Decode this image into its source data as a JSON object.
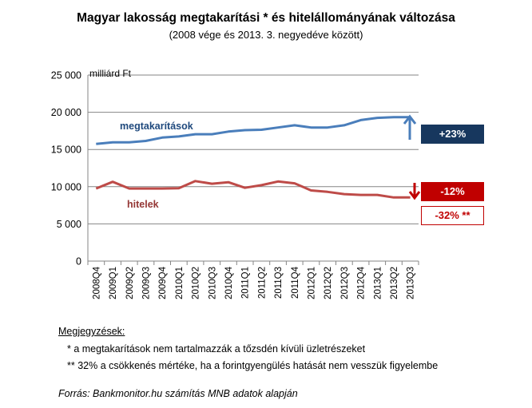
{
  "chart_data": {
    "type": "line",
    "title": "Magyar lakosság megtakarítási * és hitelállományának változása",
    "subtitle": "(2008 vége és 2013. 3. negyedéve között)",
    "ylabel": "milliárd Ft",
    "ylim": [
      0,
      25000
    ],
    "yticks": [
      "0",
      "5 000",
      "10 000",
      "15 000",
      "20 000",
      "25 000"
    ],
    "ytick_values": [
      0,
      5000,
      10000,
      15000,
      20000,
      25000
    ],
    "categories": [
      "2008Q4",
      "2009Q1",
      "2009Q2",
      "2009Q3",
      "2009Q4",
      "2010Q1",
      "2010Q2",
      "2010Q3",
      "2010Q4",
      "2011Q1",
      "2011Q2",
      "2011Q3",
      "2011Q4",
      "2012Q1",
      "2012Q2",
      "2012Q3",
      "2012Q4",
      "2013Q1",
      "2013Q2",
      "2013Q3"
    ],
    "series": [
      {
        "name": "megtakarítások",
        "color": "#4a7ebb",
        "values": [
          15750,
          15950,
          15950,
          16150,
          16600,
          16750,
          17050,
          17050,
          17400,
          17600,
          17650,
          17950,
          18250,
          17950,
          17950,
          18250,
          18950,
          19250,
          19350,
          19350
        ]
      },
      {
        "name": "hitelek",
        "color": "#be4b48",
        "values": [
          9750,
          10650,
          9750,
          9750,
          9750,
          9800,
          10750,
          10400,
          10600,
          9850,
          10200,
          10700,
          10450,
          9500,
          9300,
          9000,
          8900,
          8900,
          8550,
          8550
        ]
      }
    ],
    "grid": true,
    "annotations": {
      "up_label": "+23%",
      "down_label": "-12%",
      "down_label_2": "-32% **"
    },
    "colors": {
      "up_arrow": "#4a7ebb",
      "down_arrow": "#c00000",
      "badge_blue": "#17375e",
      "badge_red": "#c00000"
    }
  },
  "notes": {
    "heading": "Megjegyzések:",
    "note1": "* a megtakarítások nem tartalmazzák a tőzsdén kívüli üzletrészeket",
    "note2": "** 32% a csökkenés mértéke, ha a forintgyengülés hatását nem vesszük figyelembe"
  },
  "source": "Forrás: Bankmonitor.hu számítás MNB adatok alapján"
}
